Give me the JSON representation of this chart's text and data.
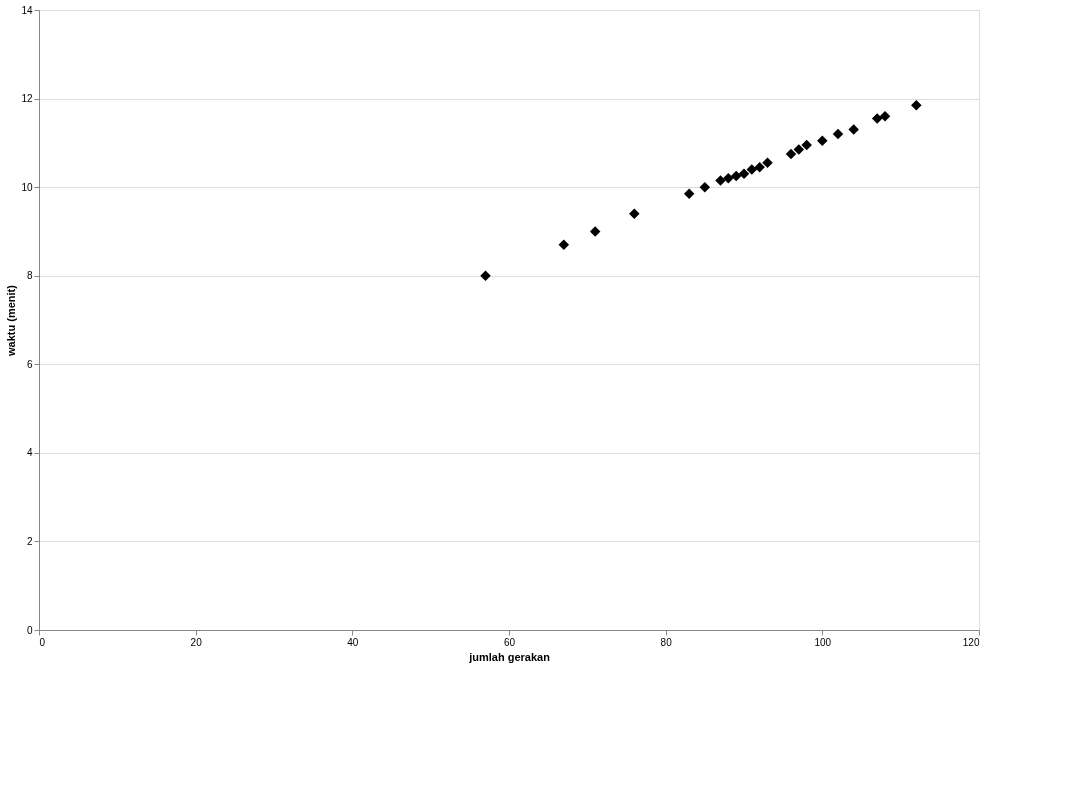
{
  "chart_data": {
    "type": "scatter",
    "xlabel": "jumlah gerakan",
    "ylabel": "waktu (menit)",
    "x": [
      57,
      67,
      71,
      76,
      83,
      85,
      87,
      88,
      89,
      90,
      91,
      92,
      93,
      96,
      97,
      98,
      100,
      102,
      104,
      107,
      108,
      112
    ],
    "values": [
      8.0,
      8.7,
      9.0,
      9.4,
      9.85,
      10.0,
      10.15,
      10.2,
      10.25,
      10.3,
      10.4,
      10.45,
      10.55,
      10.75,
      10.85,
      10.95,
      11.05,
      11.2,
      11.3,
      11.55,
      11.6,
      11.85
    ],
    "color": "#000000",
    "marker": "diamond",
    "grid": "y",
    "legend": false,
    "xlim": [
      0,
      120
    ],
    "xticks": [
      0,
      20,
      40,
      60,
      80,
      100,
      120
    ],
    "ylim": [
      0,
      14
    ],
    "yticks": [
      0,
      2,
      4,
      6,
      8,
      10,
      12,
      14
    ]
  }
}
